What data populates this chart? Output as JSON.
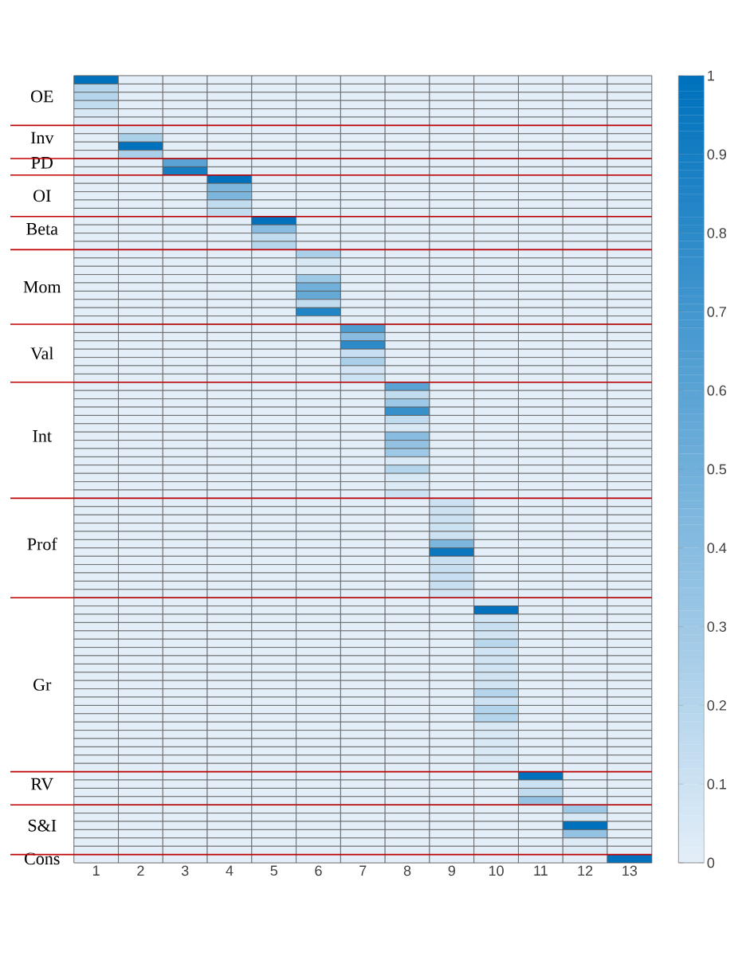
{
  "chart_data": {
    "type": "heatmap",
    "categories": [
      "1",
      "2",
      "3",
      "4",
      "5",
      "6",
      "7",
      "8",
      "9",
      "10",
      "11",
      "12",
      "13"
    ],
    "y_categories": [
      null,
      null,
      "OE",
      null,
      null,
      null,
      null,
      "Inv",
      null,
      null,
      "PD",
      null,
      null,
      null,
      "OI",
      null,
      null,
      null,
      "Beta",
      null,
      null,
      null,
      null,
      null,
      null,
      "Mom",
      null,
      null,
      null,
      null,
      null,
      null,
      null,
      "Val",
      null,
      null,
      null,
      null,
      null,
      null,
      null,
      null,
      null,
      "Int",
      null,
      null,
      null,
      null,
      null,
      null,
      null,
      null,
      null,
      null,
      null,
      null,
      "Prof",
      null,
      null,
      null,
      null,
      null,
      null,
      null,
      null,
      null,
      null,
      null,
      null,
      null,
      null,
      null,
      null,
      "Gr",
      null,
      null,
      null,
      null,
      null,
      null,
      null,
      null,
      null,
      null,
      null,
      "RV",
      null,
      null,
      null,
      null,
      "S&I",
      null,
      null,
      null,
      "Cons"
    ],
    "cells": [
      [
        1,
        0,
        0,
        0,
        0,
        0,
        0,
        0,
        0,
        0,
        0,
        0,
        0
      ],
      [
        0.2,
        0,
        0,
        0,
        0,
        0,
        0,
        0,
        0,
        0,
        0,
        0,
        0
      ],
      [
        0.2,
        0,
        0,
        0,
        0,
        0,
        0,
        0,
        0,
        0,
        0,
        0,
        0
      ],
      [
        0.15,
        0,
        0,
        0,
        0,
        0,
        0,
        0,
        0,
        0,
        0,
        0,
        0
      ],
      [
        0.05,
        0,
        0,
        0,
        0,
        0,
        0,
        0,
        0,
        0,
        0,
        0,
        0
      ],
      [
        0.02,
        0,
        0,
        0,
        0,
        0,
        0,
        0,
        0,
        0,
        0,
        0,
        0
      ],
      [
        0,
        0.08,
        0,
        0,
        0,
        0,
        0,
        0,
        0,
        0,
        0,
        0,
        0
      ],
      [
        0,
        0.25,
        0,
        0,
        0,
        0,
        0,
        0,
        0,
        0,
        0,
        0,
        0
      ],
      [
        0,
        1,
        0,
        0,
        0,
        0,
        0,
        0,
        0,
        0,
        0,
        0,
        0
      ],
      [
        0,
        0.25,
        0,
        0,
        0,
        0,
        0,
        0,
        0,
        0,
        0,
        0,
        0
      ],
      [
        0,
        0,
        0.6,
        0,
        0,
        0,
        0,
        0,
        0,
        0,
        0,
        0,
        0
      ],
      [
        0,
        0,
        0.9,
        0,
        0,
        0,
        0,
        0,
        0,
        0,
        0,
        0,
        0
      ],
      [
        0,
        0,
        0,
        1,
        0,
        0,
        0,
        0,
        0,
        0,
        0,
        0,
        0
      ],
      [
        0,
        0,
        0,
        0.45,
        0,
        0,
        0,
        0,
        0,
        0,
        0,
        0,
        0
      ],
      [
        0,
        0,
        0,
        0.45,
        0,
        0,
        0,
        0,
        0,
        0,
        0,
        0,
        0
      ],
      [
        0,
        0,
        0,
        0.15,
        0,
        0,
        0,
        0,
        0,
        0,
        0,
        0,
        0
      ],
      [
        0,
        0,
        0,
        0.15,
        0,
        0,
        0,
        0,
        0,
        0,
        0,
        0,
        0
      ],
      [
        0,
        0,
        0,
        0,
        1,
        0,
        0,
        0,
        0,
        0,
        0,
        0,
        0
      ],
      [
        0,
        0,
        0,
        0,
        0.4,
        0,
        0,
        0,
        0,
        0,
        0,
        0,
        0
      ],
      [
        0,
        0,
        0,
        0,
        0.15,
        0,
        0,
        0,
        0,
        0,
        0,
        0,
        0
      ],
      [
        0,
        0,
        0,
        0,
        0.2,
        0,
        0,
        0,
        0,
        0,
        0,
        0,
        0
      ],
      [
        0,
        0,
        0,
        0,
        0,
        0.25,
        0,
        0,
        0,
        0,
        0,
        0,
        0
      ],
      [
        0,
        0,
        0,
        0,
        0,
        0.05,
        0,
        0,
        0,
        0,
        0,
        0,
        0
      ],
      [
        0,
        0,
        0,
        0,
        0,
        0.03,
        0,
        0,
        0,
        0,
        0,
        0,
        0
      ],
      [
        0,
        0,
        0,
        0,
        0,
        0.3,
        0,
        0,
        0,
        0,
        0,
        0,
        0
      ],
      [
        0,
        0,
        0,
        0,
        0,
        0.5,
        0,
        0,
        0,
        0,
        0,
        0,
        0
      ],
      [
        0,
        0,
        0,
        0,
        0,
        0.55,
        0,
        0,
        0,
        0,
        0,
        0,
        0
      ],
      [
        0,
        0,
        0,
        0,
        0,
        0.15,
        0,
        0,
        0,
        0,
        0,
        0,
        0
      ],
      [
        0,
        0,
        0,
        0,
        0,
        0.85,
        0,
        0,
        0,
        0,
        0,
        0,
        0
      ],
      [
        0,
        0,
        0,
        0,
        0,
        0.05,
        0,
        0,
        0,
        0,
        0,
        0,
        0
      ],
      [
        0,
        0,
        0,
        0,
        0,
        0,
        0.65,
        0,
        0,
        0,
        0,
        0,
        0
      ],
      [
        0,
        0,
        0,
        0,
        0,
        0,
        0.4,
        0,
        0,
        0,
        0,
        0,
        0
      ],
      [
        0,
        0,
        0,
        0,
        0,
        0,
        0.8,
        0,
        0,
        0,
        0,
        0,
        0
      ],
      [
        0,
        0,
        0,
        0,
        0,
        0,
        0.12,
        0,
        0,
        0,
        0,
        0,
        0
      ],
      [
        0,
        0,
        0,
        0,
        0,
        0,
        0.25,
        0,
        0,
        0,
        0,
        0,
        0
      ],
      [
        0,
        0,
        0,
        0,
        0,
        0,
        0.07,
        0,
        0,
        0,
        0,
        0,
        0
      ],
      [
        0,
        0,
        0,
        0,
        0,
        0,
        0.1,
        0,
        0,
        0,
        0,
        0,
        0
      ],
      [
        0,
        0,
        0,
        0,
        0,
        0,
        0,
        0.6,
        0,
        0,
        0,
        0,
        0
      ],
      [
        0,
        0,
        0,
        0,
        0,
        0,
        0,
        0.15,
        0,
        0,
        0,
        0,
        0
      ],
      [
        0,
        0,
        0,
        0,
        0,
        0,
        0,
        0.3,
        0,
        0,
        0,
        0,
        0
      ],
      [
        0,
        0,
        0,
        0,
        0,
        0,
        0,
        0.75,
        0,
        0,
        0,
        0,
        0
      ],
      [
        0,
        0,
        0,
        0,
        0,
        0,
        0,
        0.15,
        0,
        0,
        0,
        0,
        0
      ],
      [
        0,
        0,
        0,
        0,
        0,
        0,
        0,
        0.05,
        0,
        0,
        0,
        0,
        0
      ],
      [
        0,
        0,
        0,
        0,
        0,
        0,
        0,
        0.4,
        0,
        0,
        0,
        0,
        0
      ],
      [
        0,
        0,
        0,
        0,
        0,
        0,
        0,
        0.35,
        0,
        0,
        0,
        0,
        0
      ],
      [
        0,
        0,
        0,
        0,
        0,
        0,
        0,
        0.3,
        0,
        0,
        0,
        0,
        0
      ],
      [
        0,
        0,
        0,
        0,
        0,
        0,
        0,
        0.05,
        0,
        0,
        0,
        0,
        0
      ],
      [
        0,
        0,
        0,
        0,
        0,
        0,
        0,
        0.2,
        0,
        0,
        0,
        0,
        0
      ],
      [
        0,
        0,
        0,
        0,
        0,
        0,
        0,
        0.05,
        0,
        0,
        0,
        0,
        0
      ],
      [
        0,
        0,
        0,
        0,
        0,
        0,
        0,
        0.03,
        0,
        0,
        0,
        0,
        0
      ],
      [
        0,
        0,
        0,
        0,
        0,
        0,
        0,
        0.1,
        0,
        0,
        0,
        0,
        0
      ],
      [
        0,
        0,
        0,
        0,
        0,
        0,
        0,
        0,
        0.1,
        0,
        0,
        0,
        0
      ],
      [
        0,
        0,
        0,
        0,
        0,
        0,
        0,
        0,
        0.1,
        0,
        0,
        0,
        0
      ],
      [
        0,
        0,
        0,
        0,
        0,
        0,
        0,
        0,
        0.1,
        0,
        0,
        0,
        0
      ],
      [
        0,
        0,
        0,
        0,
        0,
        0,
        0,
        0,
        0.1,
        0,
        0,
        0,
        0
      ],
      [
        0,
        0,
        0,
        0,
        0,
        0,
        0,
        0,
        0.1,
        0,
        0,
        0,
        0
      ],
      [
        0,
        0,
        0,
        0,
        0,
        0,
        0,
        0,
        0.45,
        0,
        0,
        0,
        0
      ],
      [
        0,
        0,
        0,
        0,
        0,
        0,
        0,
        0,
        0.95,
        0,
        0,
        0,
        0
      ],
      [
        0,
        0,
        0,
        0,
        0,
        0,
        0,
        0,
        0.12,
        0,
        0,
        0,
        0
      ],
      [
        0,
        0,
        0,
        0,
        0,
        0,
        0,
        0,
        0.12,
        0,
        0,
        0,
        0
      ],
      [
        0,
        0,
        0,
        0,
        0,
        0,
        0,
        0,
        0.12,
        0,
        0,
        0,
        0
      ],
      [
        0,
        0,
        0,
        0,
        0,
        0,
        0,
        0,
        0.12,
        0,
        0,
        0,
        0
      ],
      [
        0,
        0,
        0,
        0,
        0,
        0,
        0,
        0,
        0.08,
        0,
        0,
        0,
        0
      ],
      [
        0,
        0,
        0,
        0,
        0,
        0,
        0,
        0,
        0,
        0.05,
        0,
        0,
        0
      ],
      [
        0,
        0,
        0,
        0,
        0,
        0,
        0,
        0,
        0,
        1,
        0,
        0,
        0
      ],
      [
        0,
        0,
        0,
        0,
        0,
        0,
        0,
        0,
        0,
        0.08,
        0,
        0,
        0
      ],
      [
        0,
        0,
        0,
        0,
        0,
        0,
        0,
        0,
        0,
        0.12,
        0,
        0,
        0
      ],
      [
        0,
        0,
        0,
        0,
        0,
        0,
        0,
        0,
        0,
        0.08,
        0,
        0,
        0
      ],
      [
        0,
        0,
        0,
        0,
        0,
        0,
        0,
        0,
        0,
        0.18,
        0,
        0,
        0
      ],
      [
        0,
        0,
        0,
        0,
        0,
        0,
        0,
        0,
        0,
        0.08,
        0,
        0,
        0
      ],
      [
        0,
        0,
        0,
        0,
        0,
        0,
        0,
        0,
        0,
        0.08,
        0,
        0,
        0
      ],
      [
        0,
        0,
        0,
        0,
        0,
        0,
        0,
        0,
        0,
        0.08,
        0,
        0,
        0
      ],
      [
        0,
        0,
        0,
        0,
        0,
        0,
        0,
        0,
        0,
        0.08,
        0,
        0,
        0
      ],
      [
        0,
        0,
        0,
        0,
        0,
        0,
        0,
        0,
        0,
        0.08,
        0,
        0,
        0
      ],
      [
        0,
        0,
        0,
        0,
        0,
        0,
        0,
        0,
        0,
        0.2,
        0,
        0,
        0
      ],
      [
        0,
        0,
        0,
        0,
        0,
        0,
        0,
        0,
        0,
        0.1,
        0,
        0,
        0
      ],
      [
        0,
        0,
        0,
        0,
        0,
        0,
        0,
        0,
        0,
        0.22,
        0,
        0,
        0
      ],
      [
        0,
        0,
        0,
        0,
        0,
        0,
        0,
        0,
        0,
        0.2,
        0,
        0,
        0
      ],
      [
        0,
        0,
        0,
        0,
        0,
        0,
        0,
        0,
        0,
        0.05,
        0,
        0,
        0
      ],
      [
        0,
        0,
        0,
        0,
        0,
        0,
        0,
        0,
        0,
        0.05,
        0,
        0,
        0
      ],
      [
        0,
        0,
        0,
        0,
        0,
        0,
        0,
        0,
        0,
        0.05,
        0,
        0,
        0
      ],
      [
        0,
        0,
        0,
        0,
        0,
        0,
        0,
        0,
        0,
        0.05,
        0,
        0,
        0
      ],
      [
        0,
        0,
        0,
        0,
        0,
        0,
        0,
        0,
        0,
        0.05,
        0,
        0,
        0
      ],
      [
        0,
        0,
        0,
        0,
        0,
        0,
        0,
        0,
        0,
        0.05,
        0,
        0,
        0
      ],
      [
        0,
        0,
        0,
        0,
        0,
        0,
        0,
        0,
        0,
        0,
        1,
        0,
        0
      ],
      [
        0,
        0,
        0,
        0,
        0,
        0,
        0,
        0,
        0,
        0,
        0.1,
        0,
        0
      ],
      [
        0,
        0,
        0,
        0,
        0,
        0,
        0,
        0,
        0,
        0,
        0.15,
        0,
        0
      ],
      [
        0,
        0,
        0,
        0,
        0,
        0,
        0,
        0,
        0,
        0,
        0.35,
        0,
        0
      ],
      [
        0,
        0,
        0,
        0,
        0,
        0,
        0,
        0,
        0,
        0,
        0,
        0.3,
        0
      ],
      [
        0,
        0,
        0,
        0,
        0,
        0,
        0,
        0,
        0,
        0,
        0,
        0.05,
        0
      ],
      [
        0,
        0,
        0,
        0,
        0,
        0,
        0,
        0,
        0,
        0,
        0,
        1,
        0
      ],
      [
        0,
        0,
        0,
        0,
        0,
        0,
        0,
        0,
        0,
        0,
        0,
        0.35,
        0
      ],
      [
        0,
        0,
        0,
        0,
        0,
        0,
        0,
        0,
        0,
        0,
        0,
        0.03,
        0
      ],
      [
        0,
        0,
        0,
        0,
        0,
        0,
        0,
        0,
        0,
        0,
        0,
        0.03,
        0
      ],
      [
        0,
        0,
        0,
        0,
        0,
        0,
        0,
        0,
        0,
        0,
        0,
        0,
        1
      ]
    ],
    "clim": [
      0,
      1
    ],
    "cticks": [
      0,
      0.1,
      0.2,
      0.3,
      0.4,
      0.5,
      0.6,
      0.7,
      0.8,
      0.9,
      1
    ]
  }
}
